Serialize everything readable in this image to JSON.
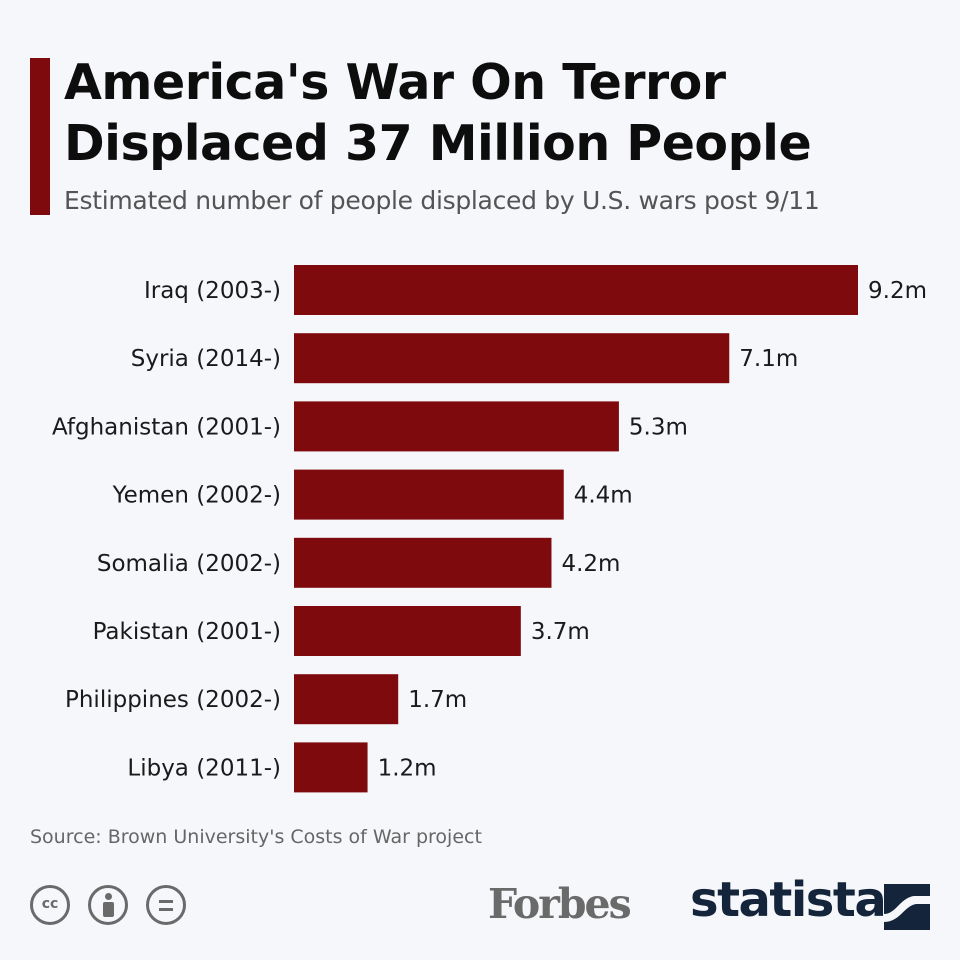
{
  "header": {
    "title_line1": "America's War On Terror",
    "title_line2": "Displaced 37 Million People",
    "subtitle": "Estimated number of people displaced by U.S. wars post 9/11"
  },
  "footer": {
    "source": "Source: Brown University's Costs of War project",
    "cc_label": "cc",
    "forbes_logo": "Forbes",
    "statista_logo": "statista"
  },
  "colors": {
    "bar": "#7f0a0e",
    "accent": "#7f0a0e",
    "background": "#f5f7fb",
    "statista_brand": "#14243b"
  },
  "icons": [
    "creative-commons-icon",
    "attribution-icon",
    "no-derivatives-icon",
    "statista-logo-icon"
  ],
  "chart_data": {
    "type": "bar",
    "orientation": "horizontal",
    "categories": [
      "Iraq (2003-)",
      "Syria (2014-)",
      "Afghanistan (2001-)",
      "Yemen (2002-)",
      "Somalia (2002-)",
      "Pakistan (2001-)",
      "Philippines (2002-)",
      "Libya (2011-)"
    ],
    "values": [
      9.2,
      7.1,
      5.3,
      4.4,
      4.2,
      3.7,
      1.7,
      1.2
    ],
    "data_labels": [
      "9.2m",
      "7.1m",
      "5.3m",
      "4.4m",
      "4.2m",
      "3.7m",
      "1.7m",
      "1.2m"
    ],
    "unit": "m",
    "title": "America's War On Terror Displaced 37 Million People",
    "subtitle": "Estimated number of people displaced by U.S. wars post 9/11",
    "xlabel": "",
    "ylabel": "",
    "xlim": [
      0,
      9.2
    ],
    "grid": false,
    "legend": "none"
  }
}
